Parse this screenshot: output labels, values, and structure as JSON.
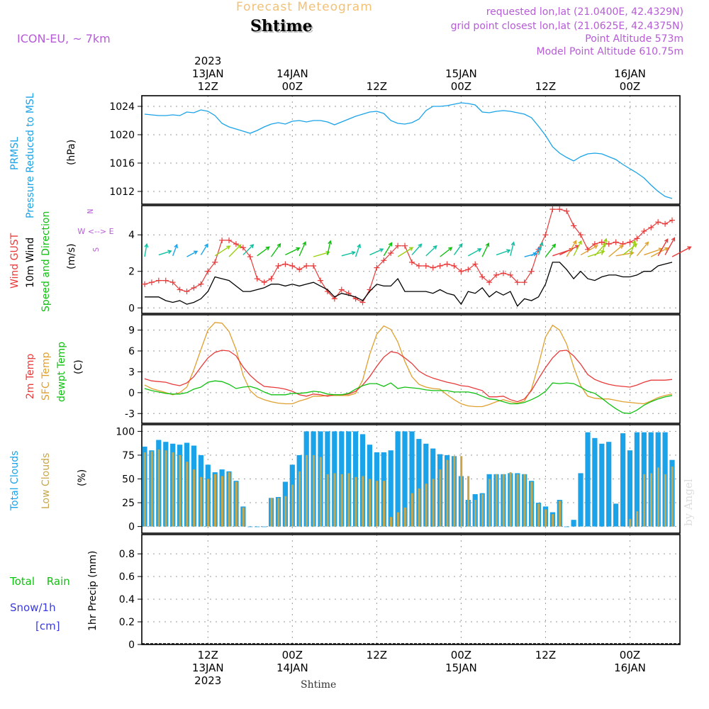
{
  "header": {
    "title": "Forecast Meteogram",
    "location": "Shtime",
    "model": "ICON-EU, ~ 7km",
    "requested": "requested lon,lat (21.0400E, 42.4329N)",
    "grid_point": "grid point closest lon,lat (21.0625E, 42.4375N)",
    "point_altitude": "Point Altitude 573m",
    "model_altitude": "Model Point Altitude 610.75m"
  },
  "credit": "by Angel",
  "footer_location": "Shtime",
  "colors": {
    "pressure": "#1aa3e8",
    "gust": "#e83a3a",
    "wind10": "#000000",
    "windDir": "#10c010",
    "temp2m": "#e83a3a",
    "sfcTemp": "#e0a030",
    "dewpt": "#10c010",
    "totalClouds": "#1aa3e8",
    "lowClouds": "#c8a64a",
    "rain": "#10c010",
    "snow": "#3a3ae0",
    "label_purple": "#b65cd6"
  },
  "x_axis_top": [
    {
      "slot": 9,
      "lines": [
        "2023",
        "13JAN",
        "12Z"
      ]
    },
    {
      "slot": 21,
      "lines": [
        "14JAN",
        "00Z"
      ]
    },
    {
      "slot": 33,
      "lines": [
        "12Z"
      ]
    },
    {
      "slot": 45,
      "lines": [
        "15JAN",
        "00Z"
      ]
    },
    {
      "slot": 57,
      "lines": [
        "12Z"
      ]
    },
    {
      "slot": 69,
      "lines": [
        "16JAN",
        "00Z"
      ]
    }
  ],
  "x_axis_bottom": [
    {
      "slot": 9,
      "lines": [
        "12Z",
        "13JAN",
        "2023"
      ]
    },
    {
      "slot": 21,
      "lines": [
        "00Z",
        "14JAN"
      ]
    },
    {
      "slot": 33,
      "lines": [
        "12Z"
      ]
    },
    {
      "slot": 45,
      "lines": [
        "00Z",
        "15JAN"
      ]
    },
    {
      "slot": 57,
      "lines": [
        "12Z"
      ]
    },
    {
      "slot": 69,
      "lines": [
        "00Z",
        "16JAN"
      ]
    }
  ],
  "panels": {
    "pressure": {
      "labels": [
        "PRMSL",
        "Pressure Reduced to MSL",
        "(hPa)"
      ],
      "yticks": [
        "1012",
        "1016",
        "1020",
        "1024"
      ]
    },
    "wind": {
      "labels": [
        "Wind GUST",
        "10m Wind",
        "Speed and Direction",
        "(m/s)"
      ],
      "compass": [
        "N",
        "W <--> E",
        "S"
      ],
      "yticks": [
        "0",
        "2",
        "4"
      ]
    },
    "temp": {
      "labels": [
        "2m Temp",
        "SFC Temp",
        "dewpt Temp",
        "(C)"
      ],
      "yticks": [
        "-3",
        "0",
        "3",
        "6",
        "9"
      ]
    },
    "clouds": {
      "labels": [
        "Total Clouds",
        "Low Clouds",
        "(%)"
      ],
      "yticks": [
        "0",
        "25",
        "50",
        "75",
        "100"
      ]
    },
    "precip": {
      "labels": [
        "Total Rain",
        "Snow/1h",
        "[cm]",
        "1hr Precip (mm)"
      ],
      "yticks": [
        "0",
        "0.2",
        "0.4",
        "0.6",
        "0.8"
      ]
    }
  },
  "chart_data": [
    {
      "type": "line",
      "title": "PRMSL Pressure Reduced to MSL",
      "ylabel": "hPa",
      "ylim": [
        1010.2,
        1025.5
      ],
      "x_hours_from_start": [
        0,
        1,
        2,
        3,
        4,
        5,
        6,
        7,
        8,
        9,
        10,
        11,
        12,
        13,
        14,
        15,
        16,
        17,
        18,
        19,
        20,
        21,
        22,
        23,
        24,
        25,
        26,
        27,
        28,
        29,
        30,
        31,
        32,
        33,
        34,
        35,
        36,
        37,
        38,
        39,
        40,
        41,
        42,
        43,
        44,
        45,
        46,
        47,
        48,
        49,
        50,
        51,
        52,
        53,
        54,
        55,
        56,
        57,
        58,
        59,
        60,
        61,
        62,
        63,
        64,
        65,
        66,
        67,
        68,
        69,
        70,
        71,
        72,
        73,
        74,
        75
      ],
      "series": [
        {
          "name": "PRMSL",
          "values": [
            1022.9,
            1022.8,
            1022.7,
            1022.7,
            1022.8,
            1022.7,
            1023.2,
            1023.1,
            1023.5,
            1023.3,
            1022.7,
            1021.6,
            1021.1,
            1020.8,
            1020.5,
            1020.2,
            1020.6,
            1021.1,
            1021.5,
            1021.7,
            1021.5,
            1021.9,
            1022.0,
            1021.8,
            1022.0,
            1022.0,
            1021.8,
            1021.4,
            1021.8,
            1022.2,
            1022.6,
            1022.9,
            1023.2,
            1023.3,
            1023.0,
            1022.0,
            1021.6,
            1021.5,
            1021.7,
            1022.2,
            1023.4,
            1024.0,
            1024.0,
            1024.1,
            1024.3,
            1024.5,
            1024.4,
            1024.2,
            1023.2,
            1023.1,
            1023.3,
            1023.4,
            1023.3,
            1023.1,
            1022.9,
            1022.4,
            1021.2,
            1019.9,
            1018.3,
            1017.4,
            1016.8,
            1016.3,
            1016.9,
            1017.3,
            1017.4,
            1017.3,
            1016.9,
            1016.5,
            1015.8,
            1015.2,
            1014.6,
            1013.9,
            1012.9,
            1012.0,
            1011.3,
            1011.0
          ]
        }
      ]
    },
    {
      "type": "line",
      "title": "Wind GUST / 10m Wind Speed and Direction",
      "ylabel": "m/s",
      "ylim": [
        -0.3,
        5.6
      ],
      "x_hours_from_start": [
        0,
        1,
        2,
        3,
        4,
        5,
        6,
        7,
        8,
        9,
        10,
        11,
        12,
        13,
        14,
        15,
        16,
        17,
        18,
        19,
        20,
        21,
        22,
        23,
        24,
        25,
        26,
        27,
        28,
        29,
        30,
        31,
        32,
        33,
        34,
        35,
        36,
        37,
        38,
        39,
        40,
        41,
        42,
        43,
        44,
        45,
        46,
        47,
        48,
        49,
        50,
        51,
        52,
        53,
        54,
        55,
        56,
        57,
        58,
        59,
        60,
        61,
        62,
        63,
        64,
        65,
        66,
        67,
        68,
        69,
        70,
        71,
        72,
        73,
        74,
        75
      ],
      "series": [
        {
          "name": "Wind GUST",
          "values": [
            1.3,
            1.4,
            1.5,
            1.5,
            1.4,
            1.0,
            0.9,
            1.1,
            1.3,
            2.0,
            2.5,
            3.7,
            3.7,
            3.5,
            3.3,
            2.8,
            1.6,
            1.4,
            1.6,
            2.3,
            2.4,
            2.3,
            2.1,
            2.3,
            2.3,
            1.5,
            0.9,
            0.5,
            1.0,
            0.8,
            0.5,
            0.3,
            1.0,
            2.2,
            2.6,
            3.0,
            3.4,
            3.4,
            2.5,
            2.3,
            2.3,
            2.2,
            2.3,
            2.4,
            2.3,
            2.0,
            2.1,
            2.4,
            1.7,
            1.4,
            1.8,
            1.9,
            1.8,
            1.4,
            1.4,
            2.0,
            3.2,
            4.0,
            5.4,
            5.4,
            5.3,
            4.5,
            4.0,
            3.2,
            3.5,
            3.6,
            3.5,
            3.6,
            3.5,
            3.6,
            3.8,
            4.2,
            4.4,
            4.7,
            4.6,
            4.8
          ]
        },
        {
          "name": "10m Wind",
          "values": [
            0.6,
            0.6,
            0.6,
            0.4,
            0.3,
            0.4,
            0.2,
            0.3,
            0.5,
            0.9,
            1.7,
            1.6,
            1.5,
            1.2,
            0.9,
            0.9,
            1.0,
            1.1,
            1.3,
            1.3,
            1.2,
            1.3,
            1.2,
            1.3,
            1.4,
            1.2,
            1.0,
            0.6,
            0.8,
            0.7,
            0.6,
            0.4,
            0.9,
            1.3,
            1.2,
            1.2,
            1.6,
            0.9,
            0.9,
            0.9,
            0.9,
            0.8,
            1.0,
            0.8,
            0.7,
            0.2,
            0.9,
            0.8,
            1.1,
            0.6,
            0.9,
            0.7,
            0.9,
            0.1,
            0.5,
            0.4,
            0.6,
            1.3,
            2.5,
            2.5,
            2.1,
            1.6,
            2.0,
            1.6,
            1.5,
            1.7,
            1.8,
            1.8,
            1.7,
            1.7,
            1.8,
            2.0,
            2.0,
            2.3,
            2.4,
            2.5
          ]
        }
      ]
    },
    {
      "type": "line",
      "title": "2m Temp / SFC Temp / dewpt Temp",
      "ylabel": "C",
      "ylim": [
        -4.4,
        11.2
      ],
      "x_hours_from_start": [
        0,
        1,
        2,
        3,
        4,
        5,
        6,
        7,
        8,
        9,
        10,
        11,
        12,
        13,
        14,
        15,
        16,
        17,
        18,
        19,
        20,
        21,
        22,
        23,
        24,
        25,
        26,
        27,
        28,
        29,
        30,
        31,
        32,
        33,
        34,
        35,
        36,
        37,
        38,
        39,
        40,
        41,
        42,
        43,
        44,
        45,
        46,
        47,
        48,
        49,
        50,
        51,
        52,
        53,
        54,
        55,
        56,
        57,
        58,
        59,
        60,
        61,
        62,
        63,
        64,
        65,
        66,
        67,
        68,
        69,
        70,
        71,
        72,
        73,
        74,
        75
      ],
      "series": [
        {
          "name": "2m Temp",
          "values": [
            2.0,
            1.7,
            1.6,
            1.5,
            1.2,
            1.0,
            1.4,
            2.3,
            3.7,
            5.0,
            5.8,
            6.1,
            6.0,
            5.3,
            3.7,
            2.5,
            1.6,
            0.9,
            0.8,
            0.7,
            0.5,
            0.2,
            -0.3,
            -0.5,
            -0.2,
            -0.3,
            -0.5,
            -0.3,
            -0.3,
            -0.2,
            0.2,
            1.1,
            2.3,
            3.8,
            5.1,
            5.9,
            5.7,
            5.0,
            4.2,
            3.1,
            2.5,
            2.1,
            1.8,
            1.5,
            1.3,
            1.0,
            0.9,
            0.6,
            0.3,
            -0.6,
            -0.6,
            -0.5,
            -1.0,
            -1.3,
            -0.9,
            0.3,
            2.0,
            3.6,
            5.0,
            6.0,
            6.1,
            5.3,
            4.1,
            2.6,
            1.9,
            1.5,
            1.2,
            1.0,
            0.9,
            0.8,
            1.1,
            1.5,
            1.8,
            1.8,
            1.8,
            1.9
          ]
        },
        {
          "name": "SFC Temp",
          "values": [
            1.1,
            0.6,
            0.3,
            0.0,
            -0.3,
            0.0,
            0.8,
            3.3,
            6.2,
            9.0,
            10.1,
            10.0,
            8.8,
            6.2,
            2.5,
            0.3,
            -0.6,
            -1.0,
            -1.3,
            -1.5,
            -1.6,
            -1.6,
            -1.2,
            -0.9,
            -0.5,
            -0.5,
            -0.4,
            -0.4,
            -0.4,
            -0.4,
            -0.1,
            1.8,
            5.5,
            8.4,
            9.6,
            9.1,
            7.3,
            4.5,
            2.3,
            1.2,
            0.8,
            0.6,
            0.5,
            -0.3,
            -1.0,
            -1.6,
            -1.9,
            -2.0,
            -2.0,
            -1.7,
            -1.3,
            -1.0,
            -1.3,
            -1.5,
            -1.2,
            0.5,
            4.0,
            8.0,
            9.7,
            9.0,
            7.0,
            3.7,
            1.0,
            -0.5,
            -0.8,
            -0.9,
            -0.9,
            -1.1,
            -1.3,
            -1.4,
            -1.5,
            -1.6,
            -1.2,
            -0.7,
            -0.4,
            -0.2
          ]
        },
        {
          "name": "dewpt Temp",
          "values": [
            0.6,
            0.3,
            0.1,
            -0.1,
            -0.2,
            -0.2,
            0.0,
            0.5,
            0.8,
            1.5,
            1.7,
            1.6,
            1.2,
            0.6,
            0.8,
            0.9,
            0.6,
            0.1,
            -0.3,
            -0.3,
            -0.3,
            -0.1,
            -0.1,
            0.0,
            0.2,
            0.1,
            -0.2,
            -0.3,
            -0.3,
            -0.1,
            0.5,
            1.0,
            1.3,
            1.3,
            0.9,
            1.4,
            0.6,
            0.8,
            0.7,
            0.6,
            0.4,
            0.3,
            0.3,
            0.3,
            0.1,
            0.1,
            0.1,
            -0.1,
            -0.5,
            -0.9,
            -1.0,
            -1.3,
            -1.6,
            -1.6,
            -1.4,
            -1.0,
            -0.5,
            0.2,
            1.4,
            1.3,
            1.4,
            1.3,
            0.8,
            0.2,
            -0.1,
            -0.8,
            -1.6,
            -2.3,
            -2.9,
            -3.0,
            -2.5,
            -1.8,
            -1.3,
            -0.9,
            -0.6,
            -0.4
          ]
        }
      ]
    },
    {
      "type": "bar",
      "title": "Total Clouds / Low Clouds",
      "ylabel": "%",
      "ylim": [
        -7,
        107
      ],
      "x_hours_from_start": [
        0,
        1,
        2,
        3,
        4,
        5,
        6,
        7,
        8,
        9,
        10,
        11,
        12,
        13,
        14,
        15,
        16,
        17,
        18,
        19,
        20,
        21,
        22,
        23,
        24,
        25,
        26,
        27,
        28,
        29,
        30,
        31,
        32,
        33,
        34,
        35,
        36,
        37,
        38,
        39,
        40,
        41,
        42,
        43,
        44,
        45,
        46,
        47,
        48,
        49,
        50,
        51,
        52,
        53,
        54,
        55,
        56,
        57,
        58,
        59,
        60,
        61,
        62,
        63,
        64,
        65,
        66,
        67,
        68,
        69,
        70,
        71,
        72,
        73,
        74,
        75
      ],
      "series": [
        {
          "name": "Total Clouds",
          "values": [
            84,
            80,
            91,
            89,
            87,
            86,
            88,
            85,
            75,
            65,
            57,
            60,
            58,
            48,
            21,
            0,
            0,
            0,
            30,
            31,
            47,
            65,
            75,
            100,
            100,
            100,
            100,
            100,
            100,
            100,
            100,
            97,
            86,
            78,
            78,
            80,
            100,
            100,
            100,
            92,
            87,
            82,
            76,
            75,
            74,
            53,
            28,
            34,
            35,
            55,
            55,
            55,
            56,
            56,
            55,
            48,
            25,
            21,
            15,
            28,
            0,
            7,
            56,
            99,
            93,
            87,
            89,
            24,
            98,
            80,
            99,
            99,
            99,
            99,
            99,
            70
          ]
        },
        {
          "name": "Low Clouds",
          "values": [
            78,
            79,
            81,
            80,
            78,
            75,
            68,
            60,
            52,
            50,
            55,
            53,
            57,
            47,
            20,
            0,
            0,
            0,
            30,
            30,
            32,
            44,
            58,
            75,
            75,
            73,
            55,
            56,
            55,
            56,
            52,
            53,
            50,
            48,
            48,
            10,
            15,
            20,
            35,
            40,
            45,
            50,
            60,
            70,
            74,
            74,
            53,
            28,
            34,
            50,
            55,
            55,
            57,
            55,
            55,
            47,
            24,
            18,
            13,
            27,
            0,
            0,
            0,
            0,
            0,
            0,
            0,
            0,
            0,
            8,
            16,
            55,
            56,
            62,
            55,
            63
          ]
        }
      ]
    },
    {
      "type": "line",
      "title": "1hr Precip (mm)",
      "ylabel": "mm",
      "ylim": [
        0,
        0.97
      ],
      "x_hours_from_start": [
        0,
        75
      ],
      "series": [
        {
          "name": "Total Rain",
          "values": [
            0,
            0
          ]
        },
        {
          "name": "Snow/1h",
          "values": [
            0,
            0
          ]
        }
      ]
    }
  ]
}
